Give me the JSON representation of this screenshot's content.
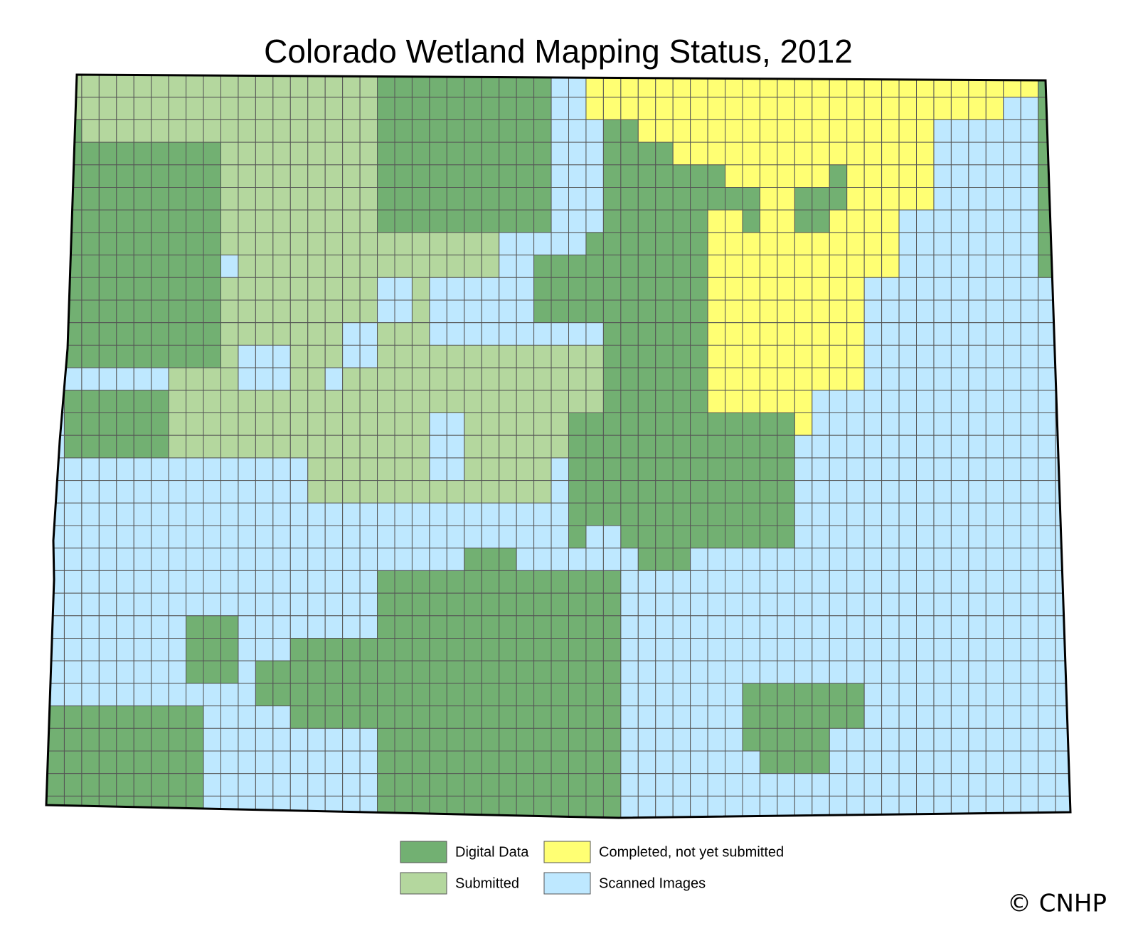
{
  "title": "Colorado Wetland Mapping Status, 2012",
  "legend": [
    {
      "label": "Digital Data",
      "color": "#72b072"
    },
    {
      "label": "Completed, not yet submitted",
      "color": "#ffff73"
    },
    {
      "label": "Submitted",
      "color": "#b4d79e"
    },
    {
      "label": "Scanned Images",
      "color": "#bee8ff"
    }
  ],
  "credit": "© CNHP"
}
